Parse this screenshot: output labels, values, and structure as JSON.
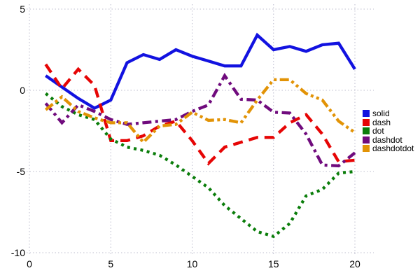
{
  "chart_data": {
    "type": "line",
    "title": "",
    "xlabel": "",
    "ylabel": "",
    "xlim": [
      0,
      21
    ],
    "ylim": [
      -10.5,
      5.3
    ],
    "grid": true,
    "legend_position": "right",
    "xticks": [
      0,
      5,
      10,
      15,
      20
    ],
    "yticks": [
      5,
      0,
      -5,
      -10
    ],
    "x": [
      1,
      2,
      3,
      4,
      5,
      6,
      7,
      8,
      9,
      10,
      11,
      12,
      13,
      14,
      15,
      16,
      17,
      18,
      19,
      20
    ],
    "series": [
      {
        "name": "solid",
        "color": "#1212e0",
        "dash_style": "solid",
        "values": [
          0.9,
          0.2,
          -0.5,
          -1.1,
          -0.6,
          1.7,
          2.2,
          1.9,
          2.5,
          2.1,
          1.8,
          1.5,
          1.5,
          3.4,
          2.5,
          2.7,
          2.4,
          2.8,
          2.9,
          1.3
        ]
      },
      {
        "name": "dash",
        "color": "#e60505",
        "dash_style": "dash",
        "values": [
          1.6,
          0.1,
          1.3,
          0.3,
          -3.1,
          -3.1,
          -2.8,
          -2.2,
          -1.9,
          -3.1,
          -4.5,
          -3.5,
          -3.2,
          -2.9,
          -2.9,
          -2.0,
          -1.5,
          -2.7,
          -4.4,
          -4.3
        ]
      },
      {
        "name": "dot",
        "color": "#0a7d0a",
        "dash_style": "dot",
        "values": [
          -0.2,
          -1.0,
          -1.5,
          -1.8,
          -3.0,
          -3.5,
          -3.7,
          -4.0,
          -4.6,
          -5.3,
          -6.0,
          -7.1,
          -7.9,
          -8.7,
          -9.0,
          -8.2,
          -6.5,
          -6.1,
          -5.1,
          -5.0
        ]
      },
      {
        "name": "dashdot",
        "color": "#700b7d",
        "dash_style": "dashdot",
        "values": [
          -0.8,
          -2.0,
          -0.9,
          -1.3,
          -1.8,
          -2.1,
          -2.0,
          -1.9,
          -1.8,
          -1.3,
          -0.9,
          0.9,
          -0.55,
          -0.6,
          -1.35,
          -1.4,
          -2.7,
          -4.6,
          -4.65,
          -3.85
        ]
      },
      {
        "name": "dashdotdot",
        "color": "#e29306",
        "dash_style": "dashdotdot",
        "values": [
          -1.2,
          -0.4,
          -1.3,
          -1.7,
          -2.0,
          -2.0,
          -3.2,
          -2.2,
          -2.1,
          -1.35,
          -1.85,
          -1.8,
          -2.0,
          -0.6,
          0.65,
          0.65,
          -0.2,
          -0.6,
          -1.9,
          -2.6
        ]
      }
    ],
    "legend_labels": [
      "solid",
      "dash",
      "dot",
      "dashdot",
      "dashdotdot"
    ]
  },
  "grid_color": "#bcbccd"
}
